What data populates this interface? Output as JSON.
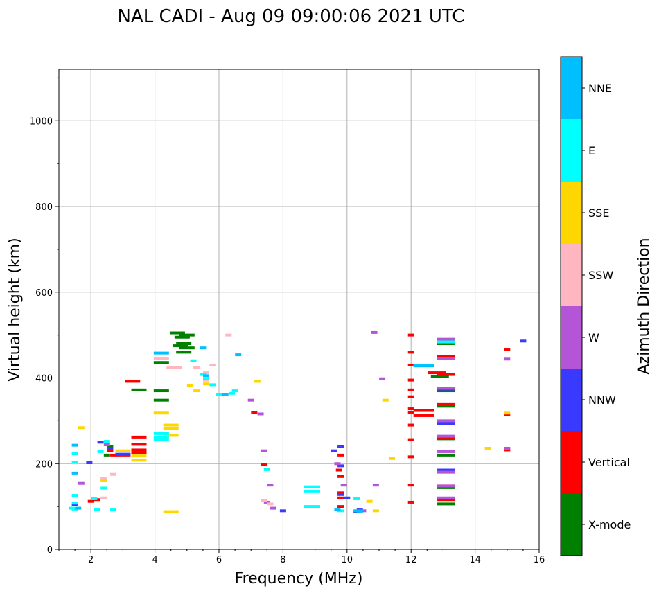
{
  "chart_data": {
    "type": "scatter",
    "title": "NAL CADI - Aug 09 09:00:06 2021 UTC",
    "xlabel": "Frequency (MHz)",
    "ylabel": "Virtual height (km)",
    "xlim": [
      1,
      16
    ],
    "ylim": [
      0,
      1120
    ],
    "xticks": [
      2,
      4,
      6,
      8,
      10,
      12,
      14,
      16
    ],
    "yticks": [
      0,
      200,
      400,
      600,
      800,
      1000
    ],
    "grid": true,
    "colorbar": {
      "label": "Azimuth Direction",
      "categories": [
        {
          "name": "X-mode",
          "color": "#008000"
        },
        {
          "name": "Vertical",
          "color": "#ff0000"
        },
        {
          "name": "NNW",
          "color": "#3a3aff"
        },
        {
          "name": "W",
          "color": "#b455d8"
        },
        {
          "name": "SSW",
          "color": "#ffb6c1"
        },
        {
          "name": "SSE",
          "color": "#ffd700"
        },
        {
          "name": "E",
          "color": "#00ffff"
        },
        {
          "name": "NNE",
          "color": "#00bfff"
        }
      ]
    },
    "series": [
      {
        "name": "X-mode",
        "points": [
          [
            3.5,
            372
          ],
          [
            4.2,
            370
          ],
          [
            4.2,
            348
          ],
          [
            4.2,
            436
          ],
          [
            4.7,
            505
          ],
          [
            4.85,
            495
          ],
          [
            4.9,
            480
          ],
          [
            5.0,
            500
          ],
          [
            5.0,
            470
          ],
          [
            4.8,
            475
          ],
          [
            4.9,
            460
          ],
          [
            12.9,
            404
          ],
          [
            13.1,
            446
          ],
          [
            13.1,
            334
          ],
          [
            13.1,
            258
          ],
          [
            13.1,
            220
          ],
          [
            13.1,
            480
          ],
          [
            13.1,
            106
          ],
          [
            13.1,
            298
          ],
          [
            13.1,
            370
          ],
          [
            13.1,
            144
          ],
          [
            2.6,
            240
          ],
          [
            2.5,
            220
          ]
        ]
      },
      {
        "name": "Vertical",
        "points": [
          [
            2.0,
            112
          ],
          [
            2.2,
            116
          ],
          [
            2.6,
            230
          ],
          [
            2.7,
            220
          ],
          [
            3.5,
            262
          ],
          [
            3.5,
            245
          ],
          [
            3.5,
            232
          ],
          [
            3.5,
            226
          ],
          [
            3.0,
            220
          ],
          [
            3.3,
            392
          ],
          [
            7.1,
            320
          ],
          [
            7.4,
            198
          ],
          [
            9.75,
            185
          ],
          [
            9.8,
            170
          ],
          [
            9.8,
            132
          ],
          [
            9.8,
            100
          ],
          [
            9.8,
            120
          ],
          [
            9.8,
            220
          ],
          [
            12.0,
            500
          ],
          [
            12.0,
            460
          ],
          [
            12.0,
            430
          ],
          [
            12.0,
            395
          ],
          [
            12.0,
            372
          ],
          [
            12.0,
            356
          ],
          [
            12.0,
            328
          ],
          [
            12.0,
            320
          ],
          [
            12.0,
            290
          ],
          [
            12.0,
            256
          ],
          [
            12.0,
            216
          ],
          [
            12.0,
            150
          ],
          [
            12.0,
            110
          ],
          [
            12.4,
            324
          ],
          [
            12.4,
            312
          ],
          [
            12.8,
            412
          ],
          [
            13.1,
            490
          ],
          [
            13.1,
            450
          ],
          [
            13.1,
            338
          ],
          [
            13.1,
            262
          ],
          [
            13.1,
            148
          ],
          [
            13.1,
            116
          ],
          [
            13.1,
            408
          ],
          [
            15.0,
            466
          ],
          [
            15.0,
            314
          ],
          [
            15.0,
            232
          ]
        ]
      },
      {
        "name": "NNW",
        "points": [
          [
            1.5,
            104
          ],
          [
            1.95,
            202
          ],
          [
            2.6,
            235
          ],
          [
            3.0,
            222
          ],
          [
            9.6,
            230
          ],
          [
            9.8,
            240
          ],
          [
            9.8,
            195
          ],
          [
            9.8,
            128
          ],
          [
            10.3,
            88
          ],
          [
            10.4,
            92
          ],
          [
            13.1,
            185
          ],
          [
            13.1,
            294
          ],
          [
            13.1,
            374
          ],
          [
            13.1,
            482
          ],
          [
            15.5,
            486
          ],
          [
            8.0,
            90
          ],
          [
            2.3,
            250
          ],
          [
            10.0,
            120
          ]
        ]
      },
      {
        "name": "W",
        "points": [
          [
            1.7,
            154
          ],
          [
            2.5,
            244
          ],
          [
            7.0,
            348
          ],
          [
            7.3,
            316
          ],
          [
            7.4,
            230
          ],
          [
            7.5,
            110
          ],
          [
            7.6,
            150
          ],
          [
            7.7,
            96
          ],
          [
            9.7,
            200
          ],
          [
            9.9,
            150
          ],
          [
            10.85,
            506
          ],
          [
            10.9,
            150
          ],
          [
            11.1,
            398
          ],
          [
            13.1,
            490
          ],
          [
            13.1,
            446
          ],
          [
            13.1,
            376
          ],
          [
            13.1,
            300
          ],
          [
            13.1,
            264
          ],
          [
            13.1,
            228
          ],
          [
            13.1,
            180
          ],
          [
            13.1,
            148
          ],
          [
            13.1,
            120
          ],
          [
            15.0,
            444
          ],
          [
            15.0,
            236
          ],
          [
            10.5,
            90
          ]
        ]
      },
      {
        "name": "SSW",
        "points": [
          [
            2.4,
            120
          ],
          [
            2.4,
            165
          ],
          [
            4.2,
            446
          ],
          [
            4.6,
            425
          ],
          [
            5.3,
            425
          ],
          [
            5.6,
            412
          ],
          [
            5.6,
            395
          ],
          [
            5.8,
            430
          ],
          [
            6.3,
            500
          ],
          [
            2.7,
            175
          ],
          [
            7.4,
            114
          ],
          [
            7.6,
            106
          ]
        ]
      },
      {
        "name": "SSE",
        "points": [
          [
            1.7,
            284
          ],
          [
            2.4,
            160
          ],
          [
            3.0,
            230
          ],
          [
            3.5,
            218
          ],
          [
            3.5,
            208
          ],
          [
            4.2,
            318
          ],
          [
            4.2,
            262
          ],
          [
            4.5,
            282
          ],
          [
            4.5,
            266
          ],
          [
            4.5,
            290
          ],
          [
            5.1,
            382
          ],
          [
            5.3,
            370
          ],
          [
            5.6,
            386
          ],
          [
            7.2,
            392
          ],
          [
            10.7,
            112
          ],
          [
            10.9,
            90
          ],
          [
            11.2,
            348
          ],
          [
            11.4,
            212
          ],
          [
            14.4,
            236
          ],
          [
            15.0,
            318
          ],
          [
            4.5,
            88
          ]
        ]
      },
      {
        "name": "E",
        "points": [
          [
            1.5,
            94
          ],
          [
            1.5,
            108
          ],
          [
            1.5,
            126
          ],
          [
            1.5,
            203
          ],
          [
            1.5,
            223
          ],
          [
            2.1,
            118
          ],
          [
            2.2,
            92
          ],
          [
            2.4,
            143
          ],
          [
            2.5,
            252
          ],
          [
            4.2,
            270
          ],
          [
            4.2,
            262
          ],
          [
            4.2,
            256
          ],
          [
            5.2,
            440
          ],
          [
            5.5,
            408
          ],
          [
            5.6,
            398
          ],
          [
            5.8,
            384
          ],
          [
            6.0,
            362
          ],
          [
            6.4,
            364
          ],
          [
            6.5,
            370
          ],
          [
            7.5,
            186
          ],
          [
            8.9,
            100
          ],
          [
            8.9,
            136
          ],
          [
            8.9,
            146
          ],
          [
            9.8,
            90
          ],
          [
            10.3,
            118
          ],
          [
            12.4,
            430
          ],
          [
            13.1,
            484
          ],
          [
            1.4,
            96
          ],
          [
            2.3,
            228
          ],
          [
            2.7,
            92
          ]
        ]
      },
      {
        "name": "NNE",
        "points": [
          [
            1.5,
            178
          ],
          [
            1.5,
            243
          ],
          [
            4.2,
            458
          ],
          [
            5.5,
            470
          ],
          [
            5.6,
            405
          ],
          [
            6.2,
            362
          ],
          [
            6.6,
            454
          ],
          [
            9.7,
            92
          ],
          [
            10.3,
            90
          ],
          [
            10.4,
            89
          ],
          [
            12.4,
            428
          ],
          [
            1.6,
            96
          ]
        ]
      }
    ]
  }
}
